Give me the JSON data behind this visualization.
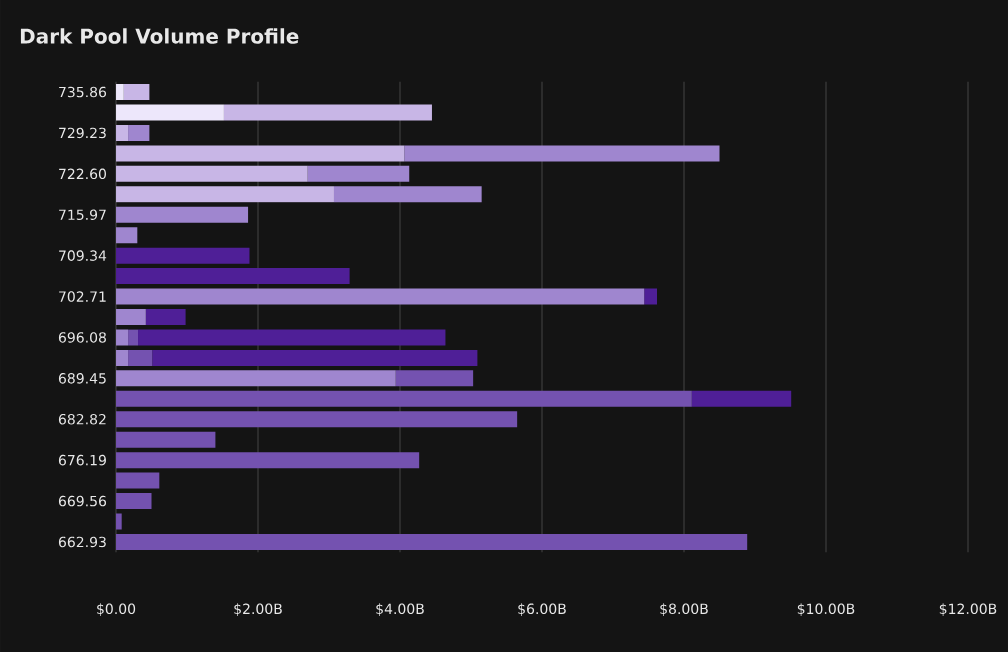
{
  "chart_data": {
    "type": "bar",
    "orientation": "horizontal",
    "stacked": true,
    "title": "Dark Pool Volume Profile",
    "categories": [
      "735.86",
      null,
      "729.23",
      null,
      "722.60",
      null,
      "715.97",
      null,
      "709.34",
      null,
      "702.71",
      null,
      "696.08",
      null,
      "689.45",
      null,
      "682.82",
      null,
      "676.19",
      null,
      "669.56",
      null,
      "662.93"
    ],
    "series": [
      {
        "color": "#ede7fb",
        "values": [
          0.11,
          1.52,
          null,
          null,
          null,
          null,
          null,
          null,
          null,
          null,
          null,
          null,
          null,
          null,
          null,
          null,
          null,
          null,
          null,
          null,
          null,
          null,
          null
        ]
      },
      {
        "color": "#c8b6e6",
        "values": [
          0.36,
          2.93,
          0.17,
          4.06,
          2.7,
          3.07,
          null,
          null,
          null,
          null,
          null,
          null,
          null,
          null,
          null,
          null,
          null,
          null,
          null,
          null,
          null,
          null,
          null
        ]
      },
      {
        "color": "#9f86cf",
        "values": [
          null,
          null,
          0.3,
          4.44,
          1.43,
          2.08,
          1.86,
          0.3,
          null,
          null,
          7.44,
          0.42,
          0.17,
          0.17,
          3.94,
          null,
          null,
          null,
          null,
          null,
          null,
          null,
          null
        ]
      },
      {
        "color": "#7452b0",
        "values": [
          null,
          null,
          null,
          null,
          null,
          null,
          null,
          null,
          null,
          null,
          null,
          null,
          0.14,
          0.34,
          1.09,
          8.11,
          5.65,
          1.4,
          4.27,
          0.61,
          0.5,
          0.08,
          8.89
        ]
      },
      {
        "color": "#4f1f97",
        "values": [
          null,
          null,
          null,
          null,
          null,
          null,
          null,
          null,
          1.88,
          3.29,
          0.18,
          0.56,
          4.33,
          4.58,
          null,
          1.4,
          null,
          null,
          null,
          null,
          null,
          null,
          null
        ]
      }
    ],
    "xlim": [
      0,
      12.5
    ],
    "xticks": [
      {
        "value": 0,
        "label": "$0.00"
      },
      {
        "value": 2,
        "label": "$2.00B"
      },
      {
        "value": 4,
        "label": "$4.00B"
      },
      {
        "value": 6,
        "label": "$6.00B"
      },
      {
        "value": 8,
        "label": "$8.00B"
      },
      {
        "value": 10,
        "label": "$10.00B"
      },
      {
        "value": 12,
        "label": "$12.00B"
      }
    ],
    "grid": "x"
  }
}
